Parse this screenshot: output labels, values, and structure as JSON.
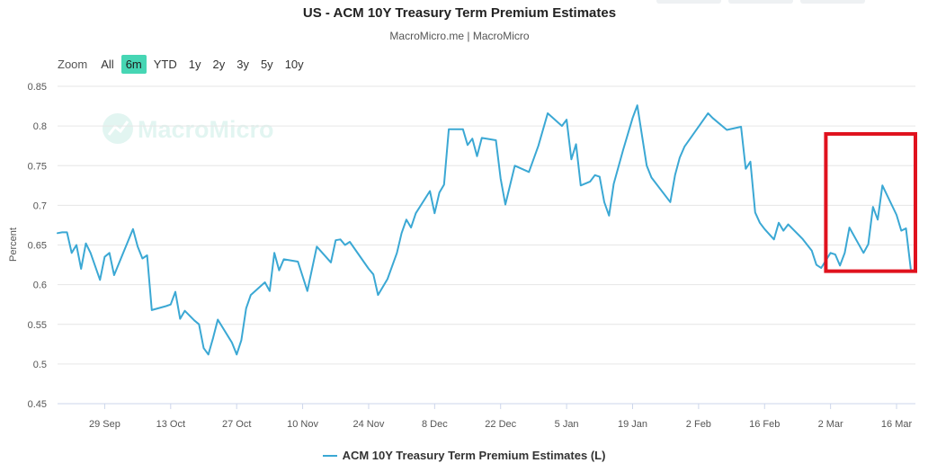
{
  "page": {
    "title": "US - ACM 10Y Treasury Term Premium Estimates",
    "subtitle": "MacroMicro.me | MacroMicro",
    "watermark": "MacroMicro",
    "zoom_label": "Zoom",
    "ranges": [
      "All",
      "6m",
      "YTD",
      "1y",
      "2y",
      "3y",
      "5y",
      "10y"
    ],
    "active_range": "6m",
    "colors": {
      "line": "#3ba8d4",
      "accent": "#46d6b4",
      "highlight": "#e0121e",
      "grid": "#e6e6e6"
    }
  },
  "chart_data": {
    "type": "line",
    "title": "US - ACM 10Y Treasury Term Premium Estimates",
    "ylabel": "Percent",
    "ylim": [
      0.45,
      0.85
    ],
    "yticks": [
      0.45,
      0.5,
      0.55,
      0.6,
      0.65,
      0.7,
      0.75,
      0.8,
      0.85
    ],
    "ytick_labels": [
      "0.45",
      "0.5",
      "0.55",
      "0.6",
      "0.65",
      "0.7",
      "0.75",
      "0.8",
      "0.85"
    ],
    "x_start": "2022-09-19",
    "x_end": "2023-03-20",
    "xticks": [
      {
        "date": "2022-09-29",
        "label": "29 Sep"
      },
      {
        "date": "2022-10-13",
        "label": "13 Oct"
      },
      {
        "date": "2022-10-27",
        "label": "27 Oct"
      },
      {
        "date": "2022-11-10",
        "label": "10 Nov"
      },
      {
        "date": "2022-11-24",
        "label": "24 Nov"
      },
      {
        "date": "2022-12-08",
        "label": "8 Dec"
      },
      {
        "date": "2022-12-22",
        "label": "22 Dec"
      },
      {
        "date": "2023-01-05",
        "label": "5 Jan"
      },
      {
        "date": "2023-01-19",
        "label": "19 Jan"
      },
      {
        "date": "2023-02-02",
        "label": "2 Feb"
      },
      {
        "date": "2023-02-16",
        "label": "16 Feb"
      },
      {
        "date": "2023-03-02",
        "label": "2 Mar"
      },
      {
        "date": "2023-03-16",
        "label": "16 Mar"
      }
    ],
    "series": [
      {
        "name": "ACM 10Y Treasury Term Premium Estimates (L)",
        "axis": "L",
        "data": [
          [
            "2022-09-19",
            0.665
          ],
          [
            "2022-09-20",
            0.666
          ],
          [
            "2022-09-21",
            0.666
          ],
          [
            "2022-09-22",
            0.64
          ],
          [
            "2022-09-23",
            0.65
          ],
          [
            "2022-09-24",
            0.62
          ],
          [
            "2022-09-25",
            0.652
          ],
          [
            "2022-09-26",
            0.64
          ],
          [
            "2022-09-28",
            0.606
          ],
          [
            "2022-09-29",
            0.635
          ],
          [
            "2022-09-30",
            0.64
          ],
          [
            "2022-10-01",
            0.612
          ],
          [
            "2022-10-05",
            0.67
          ],
          [
            "2022-10-06",
            0.648
          ],
          [
            "2022-10-07",
            0.633
          ],
          [
            "2022-10-08",
            0.637
          ],
          [
            "2022-10-09",
            0.568
          ],
          [
            "2022-10-12",
            0.573
          ],
          [
            "2022-10-13",
            0.575
          ],
          [
            "2022-10-14",
            0.591
          ],
          [
            "2022-10-15",
            0.557
          ],
          [
            "2022-10-16",
            0.567
          ],
          [
            "2022-10-18",
            0.555
          ],
          [
            "2022-10-19",
            0.55
          ],
          [
            "2022-10-20",
            0.52
          ],
          [
            "2022-10-21",
            0.512
          ],
          [
            "2022-10-22",
            0.533
          ],
          [
            "2022-10-23",
            0.556
          ],
          [
            "2022-10-26",
            0.527
          ],
          [
            "2022-10-27",
            0.512
          ],
          [
            "2022-10-28",
            0.53
          ],
          [
            "2022-10-29",
            0.57
          ],
          [
            "2022-10-30",
            0.587
          ],
          [
            "2022-11-02",
            0.603
          ],
          [
            "2022-11-03",
            0.592
          ],
          [
            "2022-11-04",
            0.64
          ],
          [
            "2022-11-05",
            0.618
          ],
          [
            "2022-11-06",
            0.632
          ],
          [
            "2022-11-09",
            0.629
          ],
          [
            "2022-11-11",
            0.592
          ],
          [
            "2022-11-13",
            0.648
          ],
          [
            "2022-11-16",
            0.628
          ],
          [
            "2022-11-17",
            0.656
          ],
          [
            "2022-11-18",
            0.657
          ],
          [
            "2022-11-19",
            0.65
          ],
          [
            "2022-11-20",
            0.654
          ],
          [
            "2022-11-24",
            0.62
          ],
          [
            "2022-11-25",
            0.613
          ],
          [
            "2022-11-26",
            0.587
          ],
          [
            "2022-11-28",
            0.607
          ],
          [
            "2022-11-30",
            0.64
          ],
          [
            "2022-12-01",
            0.665
          ],
          [
            "2022-12-02",
            0.682
          ],
          [
            "2022-12-03",
            0.672
          ],
          [
            "2022-12-04",
            0.69
          ],
          [
            "2022-12-07",
            0.718
          ],
          [
            "2022-12-08",
            0.69
          ],
          [
            "2022-12-09",
            0.716
          ],
          [
            "2022-12-10",
            0.726
          ],
          [
            "2022-12-11",
            0.796
          ],
          [
            "2022-12-14",
            0.796
          ],
          [
            "2022-12-15",
            0.776
          ],
          [
            "2022-12-16",
            0.784
          ],
          [
            "2022-12-17",
            0.762
          ],
          [
            "2022-12-18",
            0.785
          ],
          [
            "2022-12-21",
            0.782
          ],
          [
            "2022-12-22",
            0.734
          ],
          [
            "2022-12-23",
            0.701
          ],
          [
            "2022-12-25",
            0.75
          ],
          [
            "2022-12-28",
            0.742
          ],
          [
            "2022-12-30",
            0.775
          ],
          [
            "2023-01-01",
            0.816
          ],
          [
            "2023-01-04",
            0.8
          ],
          [
            "2023-01-05",
            0.808
          ],
          [
            "2023-01-06",
            0.758
          ],
          [
            "2023-01-07",
            0.777
          ],
          [
            "2023-01-08",
            0.725
          ],
          [
            "2023-01-10",
            0.73
          ],
          [
            "2023-01-11",
            0.738
          ],
          [
            "2023-01-12",
            0.736
          ],
          [
            "2023-01-13",
            0.704
          ],
          [
            "2023-01-14",
            0.687
          ],
          [
            "2023-01-15",
            0.727
          ],
          [
            "2023-01-17",
            0.77
          ],
          [
            "2023-01-19",
            0.81
          ],
          [
            "2023-01-20",
            0.826
          ],
          [
            "2023-01-22",
            0.75
          ],
          [
            "2023-01-23",
            0.735
          ],
          [
            "2023-01-27",
            0.704
          ],
          [
            "2023-01-28",
            0.738
          ],
          [
            "2023-01-29",
            0.76
          ],
          [
            "2023-01-30",
            0.774
          ],
          [
            "2023-02-04",
            0.816
          ],
          [
            "2023-02-05",
            0.81
          ],
          [
            "2023-02-08",
            0.795
          ],
          [
            "2023-02-11",
            0.799
          ],
          [
            "2023-02-12",
            0.746
          ],
          [
            "2023-02-13",
            0.755
          ],
          [
            "2023-02-14",
            0.691
          ],
          [
            "2023-02-15",
            0.678
          ],
          [
            "2023-02-16",
            0.67
          ],
          [
            "2023-02-18",
            0.657
          ],
          [
            "2023-02-19",
            0.678
          ],
          [
            "2023-02-20",
            0.668
          ],
          [
            "2023-02-21",
            0.676
          ],
          [
            "2023-02-24",
            0.658
          ],
          [
            "2023-02-26",
            0.643
          ],
          [
            "2023-02-27",
            0.625
          ],
          [
            "2023-02-28",
            0.621
          ],
          [
            "2023-03-02",
            0.64
          ],
          [
            "2023-03-03",
            0.638
          ],
          [
            "2023-03-04",
            0.624
          ],
          [
            "2023-03-05",
            0.64
          ],
          [
            "2023-03-06",
            0.672
          ],
          [
            "2023-03-09",
            0.64
          ],
          [
            "2023-03-10",
            0.651
          ],
          [
            "2023-03-11",
            0.698
          ],
          [
            "2023-03-12",
            0.682
          ],
          [
            "2023-03-13",
            0.725
          ],
          [
            "2023-03-16",
            0.688
          ],
          [
            "2023-03-17",
            0.668
          ],
          [
            "2023-03-18",
            0.671
          ],
          [
            "2023-03-19",
            0.62
          ]
        ]
      }
    ],
    "highlight_box": {
      "x_from": "2023-03-01",
      "x_to": "2023-03-20",
      "y_from": 0.617,
      "y_to": 0.79
    },
    "legend": "ACM 10Y Treasury Term Premium Estimates (L)",
    "legend_position": "bottom-center",
    "grid": "horizontal"
  }
}
